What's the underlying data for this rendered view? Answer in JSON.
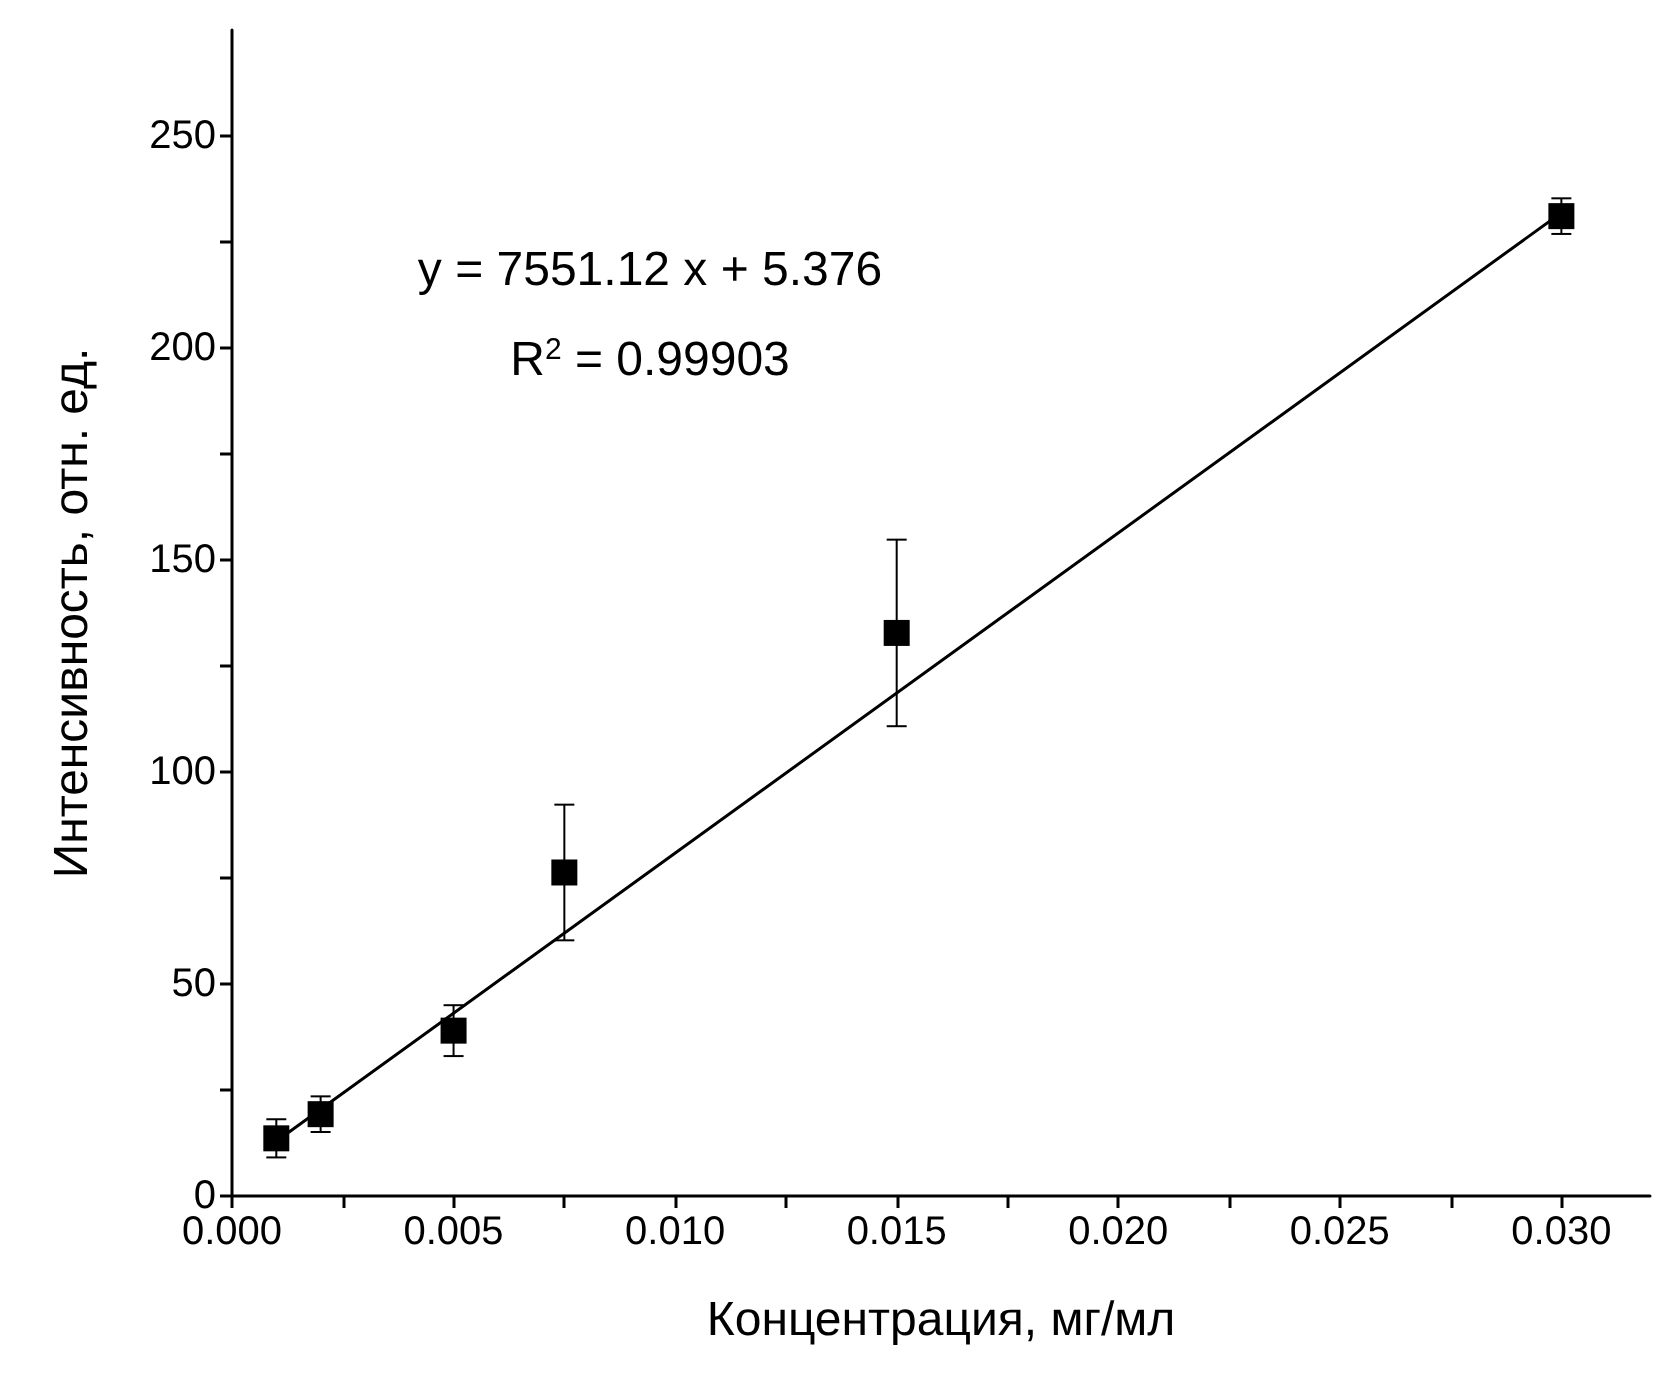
{
  "chart_data": {
    "type": "scatter",
    "xlabel": "Концентрация, мг/мл",
    "ylabel": "Интенсивность, отн. ед.",
    "annotations": [
      "y = 7551.12 x + 5.376",
      "R$^{2}$ = 0.99903"
    ],
    "x": [
      0.001,
      0.002,
      0.005,
      0.0075,
      0.015,
      0.03
    ],
    "series": [
      {
        "color": "#000000",
        "marker": "square",
        "values": [
          13.6,
          19.3,
          39,
          76.3,
          132.8,
          231.1
        ],
        "errors": [
          4.5,
          4.2,
          6,
          16,
          22,
          4.2
        ]
      },
      {
        "type": "line",
        "color": "#000000",
        "marker": "none",
        "x": [
          0.001,
          0.03
        ],
        "values": [
          12.9,
          231.9
        ]
      }
    ],
    "xlim": [
      0,
      0.032
    ],
    "xticks": [
      {
        "value": 0,
        "label": "0.000"
      },
      {
        "value": 0.0025,
        "label": null
      },
      {
        "value": 0.005,
        "label": "0.005"
      },
      {
        "value": 0.0075,
        "label": null
      },
      {
        "value": 0.01,
        "label": "0.010"
      },
      {
        "value": 0.0125,
        "label": null
      },
      {
        "value": 0.015,
        "label": "0.015"
      },
      {
        "value": 0.0175,
        "label": null
      },
      {
        "value": 0.02,
        "label": "0.020"
      },
      {
        "value": 0.0225,
        "label": null
      },
      {
        "value": 0.025,
        "label": "0.025"
      },
      {
        "value": 0.0275,
        "label": null
      },
      {
        "value": 0.03,
        "label": "0.030"
      }
    ],
    "ylim": [
      0,
      275
    ],
    "yticks": [
      0,
      {
        "value": 25,
        "label": null
      },
      50,
      {
        "value": 75,
        "label": null
      },
      100,
      {
        "value": 125,
        "label": null
      },
      150,
      {
        "value": 175,
        "label": null
      },
      200,
      {
        "value": 225,
        "label": null
      },
      250
    ],
    "grid": false
  }
}
